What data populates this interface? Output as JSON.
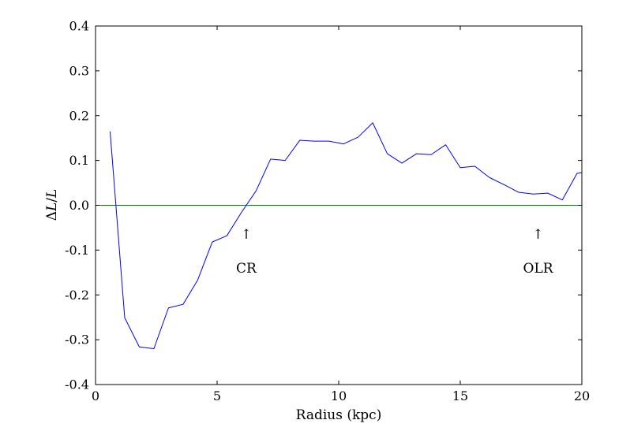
{
  "chart_data": {
    "type": "line",
    "xlabel": "Radius (kpc)",
    "ylabel_parts": [
      "Δ",
      "L",
      "/",
      "L"
    ],
    "xlim": [
      0,
      20
    ],
    "ylim": [
      -0.4,
      0.4
    ],
    "xticks": [
      0,
      5,
      10,
      15,
      20
    ],
    "yticks": [
      -0.4,
      -0.3,
      -0.2,
      -0.1,
      0.0,
      0.1,
      0.2,
      0.3,
      0.4
    ],
    "xtick_labels": [
      "0",
      "5",
      "10",
      "15",
      "20"
    ],
    "ytick_labels": [
      "-0.4",
      "-0.3",
      "-0.2",
      "-0.1",
      "0.0",
      "0.1",
      "0.2",
      "0.3",
      "0.4"
    ],
    "grid": false,
    "series": [
      {
        "color": "#0000ff",
        "x": [
          0.6,
          1.2,
          1.8,
          2.4,
          3.0,
          3.6,
          4.2,
          4.8,
          5.4,
          6.0,
          6.6,
          7.2,
          7.8,
          8.4,
          9.0,
          9.6,
          10.2,
          10.8,
          11.4,
          12.0,
          12.6,
          13.2,
          13.8,
          14.4,
          15.0,
          15.6,
          16.2,
          16.8,
          17.4,
          18.0,
          18.6,
          19.2,
          19.8,
          20.0
        ],
        "y": [
          0.165,
          -0.251,
          -0.316,
          -0.32,
          -0.229,
          -0.221,
          -0.167,
          -0.082,
          -0.068,
          -0.016,
          0.032,
          0.103,
          0.1,
          0.145,
          0.143,
          0.143,
          0.137,
          0.152,
          0.184,
          0.115,
          0.094,
          0.115,
          0.113,
          0.135,
          0.084,
          0.087,
          0.062,
          0.046,
          0.029,
          0.025,
          0.027,
          0.012,
          0.071,
          0.073
        ]
      }
    ],
    "reference_line": {
      "y": 0.0,
      "color": "#008000"
    },
    "annotations": [
      {
        "arrow": "↑",
        "text": "CR",
        "x": 6.2,
        "arrow_y": -0.082,
        "text_y": -0.14
      },
      {
        "arrow": "↑",
        "text": "OLR",
        "x": 18.2,
        "arrow_y": -0.082,
        "text_y": -0.14
      }
    ]
  }
}
